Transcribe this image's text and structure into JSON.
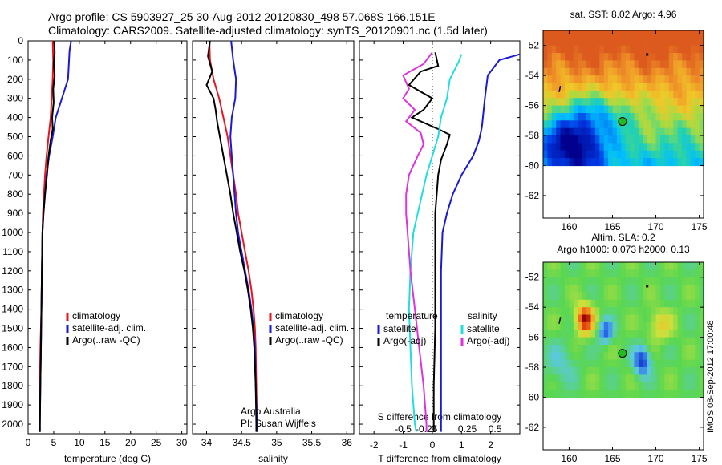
{
  "header": {
    "line1": "Argo profile: CS 5903927_25 30-Aug-2012 20120830_498 57.068S 166.151E",
    "line2": "Climatology: CARS2009. Satellite-adjusted climatology: synTS_20120901.nc (1.5d later)"
  },
  "stamp": "IMOS 08-Sep-2012 17:00:48",
  "colors": {
    "climatology": "#e8141e",
    "satellite": "#1a1ad6",
    "argo": "#000000",
    "sat_salinity": "#22dddd",
    "argo_salinity": "#dd33dd",
    "marker": "#22bb22"
  },
  "chart_data": [
    {
      "type": "line",
      "name": "temperature-profile",
      "xlabel": "temperature (deg C)",
      "ylabel": "",
      "xlim": [
        0,
        31
      ],
      "ylim": [
        2050,
        0
      ],
      "xticks": [
        0,
        5,
        10,
        15,
        20,
        25,
        30
      ],
      "yticks": [
        0,
        100,
        200,
        300,
        400,
        500,
        600,
        700,
        800,
        900,
        1000,
        1100,
        1200,
        1300,
        1400,
        1500,
        1600,
        1700,
        1800,
        1900,
        2000
      ],
      "legend": [
        "climatology",
        "satellite-adj. clim.",
        "Argo(..raw -QC)"
      ],
      "series": [
        {
          "name": "climatology",
          "color_key": "climatology",
          "points": [
            [
              4.8,
              0
            ],
            [
              4.9,
              100
            ],
            [
              4.8,
              200
            ],
            [
              4.6,
              300
            ],
            [
              4.4,
              400
            ],
            [
              4.0,
              500
            ],
            [
              3.6,
              600
            ],
            [
              3.3,
              700
            ],
            [
              3.1,
              800
            ],
            [
              2.9,
              900
            ],
            [
              2.8,
              1000
            ],
            [
              2.7,
              1200
            ],
            [
              2.6,
              1400
            ],
            [
              2.4,
              1600
            ],
            [
              2.3,
              1800
            ],
            [
              2.2,
              2000
            ],
            [
              2.2,
              2040
            ]
          ]
        },
        {
          "name": "satellite-adj. clim.",
          "color_key": "satellite",
          "points": [
            [
              8.4,
              0
            ],
            [
              8.1,
              50
            ],
            [
              7.8,
              200
            ],
            [
              6.6,
              300
            ],
            [
              5.4,
              400
            ],
            [
              4.8,
              500
            ],
            [
              4.1,
              600
            ],
            [
              3.6,
              700
            ],
            [
              3.3,
              800
            ],
            [
              3.0,
              900
            ],
            [
              2.8,
              1000
            ],
            [
              2.7,
              1200
            ],
            [
              2.6,
              1400
            ],
            [
              2.5,
              1600
            ],
            [
              2.4,
              1800
            ],
            [
              2.3,
              2000
            ],
            [
              2.3,
              2040
            ]
          ]
        },
        {
          "name": "Argo(..raw -QC)",
          "color_key": "argo",
          "points": [
            [
              5.1,
              0
            ],
            [
              5.2,
              60
            ],
            [
              5.0,
              120
            ],
            [
              5.2,
              180
            ],
            [
              4.9,
              250
            ],
            [
              5.0,
              320
            ],
            [
              4.7,
              400
            ],
            [
              4.8,
              460
            ],
            [
              4.4,
              520
            ],
            [
              4.0,
              600
            ],
            [
              3.7,
              700
            ],
            [
              3.3,
              800
            ],
            [
              3.0,
              900
            ],
            [
              2.8,
              1000
            ],
            [
              2.7,
              1200
            ],
            [
              2.6,
              1400
            ],
            [
              2.5,
              1600
            ],
            [
              2.4,
              1800
            ],
            [
              2.3,
              2000
            ],
            [
              2.3,
              2040
            ]
          ]
        }
      ]
    },
    {
      "type": "line",
      "name": "salinity-profile",
      "xlabel": "salinity",
      "ylabel": "",
      "xlim": [
        33.8,
        36.1
      ],
      "ylim": [
        2050,
        0
      ],
      "xticks": [
        34,
        34.5,
        35,
        35.5,
        36
      ],
      "xtick_labels": [
        "34",
        "34.5",
        "35",
        "35.5",
        "36"
      ],
      "legend": [
        "climatology",
        "satellite-adj. clim.",
        "Argo(..raw -QC)"
      ],
      "annotation": [
        "Argo Australia",
        "PI: Susan Wijffels"
      ],
      "series": [
        {
          "name": "climatology",
          "color_key": "climatology",
          "points": [
            [
              34.04,
              0
            ],
            [
              34.05,
              100
            ],
            [
              34.1,
              200
            ],
            [
              34.18,
              300
            ],
            [
              34.24,
              400
            ],
            [
              34.3,
              500
            ],
            [
              34.34,
              600
            ],
            [
              34.38,
              700
            ],
            [
              34.42,
              800
            ],
            [
              34.45,
              900
            ],
            [
              34.5,
              1000
            ],
            [
              34.55,
              1100
            ],
            [
              34.6,
              1200
            ],
            [
              34.64,
              1300
            ],
            [
              34.67,
              1400
            ],
            [
              34.69,
              1500
            ],
            [
              34.7,
              1600
            ],
            [
              34.71,
              1800
            ],
            [
              34.72,
              2000
            ],
            [
              34.72,
              2040
            ]
          ]
        },
        {
          "name": "satellite-adj. clim.",
          "color_key": "satellite",
          "points": [
            [
              34.35,
              0
            ],
            [
              34.38,
              100
            ],
            [
              34.42,
              200
            ],
            [
              34.41,
              300
            ],
            [
              34.36,
              400
            ],
            [
              34.34,
              500
            ],
            [
              34.36,
              600
            ],
            [
              34.38,
              700
            ],
            [
              34.4,
              800
            ],
            [
              34.42,
              900
            ],
            [
              34.45,
              1000
            ],
            [
              34.5,
              1100
            ],
            [
              34.55,
              1200
            ],
            [
              34.6,
              1300
            ],
            [
              34.64,
              1400
            ],
            [
              34.67,
              1500
            ],
            [
              34.69,
              1600
            ],
            [
              34.7,
              1800
            ],
            [
              34.72,
              2000
            ],
            [
              34.72,
              2040
            ]
          ]
        },
        {
          "name": "Argo(..raw -QC)",
          "color_key": "argo",
          "points": [
            [
              34.05,
              0
            ],
            [
              34.02,
              80
            ],
            [
              34.08,
              160
            ],
            [
              34.0,
              230
            ],
            [
              34.1,
              300
            ],
            [
              34.13,
              360
            ],
            [
              34.15,
              420
            ],
            [
              34.18,
              480
            ],
            [
              34.22,
              560
            ],
            [
              34.26,
              640
            ],
            [
              34.3,
              720
            ],
            [
              34.34,
              800
            ],
            [
              34.38,
              900
            ],
            [
              34.43,
              1000
            ],
            [
              34.48,
              1100
            ],
            [
              34.54,
              1200
            ],
            [
              34.59,
              1300
            ],
            [
              34.63,
              1400
            ],
            [
              34.66,
              1500
            ],
            [
              34.68,
              1600
            ],
            [
              34.7,
              1800
            ],
            [
              34.71,
              2000
            ],
            [
              34.71,
              2040
            ]
          ]
        }
      ]
    },
    {
      "type": "line",
      "name": "difference-profile",
      "xlabel": "T difference from climatology",
      "xlabel_top": "S difference from climatology",
      "xlim": [
        -2.5,
        3
      ],
      "ylim": [
        2050,
        0
      ],
      "xticks": [
        -2,
        -1,
        0,
        1,
        2
      ],
      "top_ticks": [
        -0.5,
        -0.25,
        0,
        0.25,
        0.5
      ],
      "top_tick_labels": [
        "-0.5",
        "-0.25",
        "0",
        "0.25",
        "0.5"
      ],
      "legend_left": {
        "title": "temperature",
        "items": [
          "satellite",
          "Argo(-adj)"
        ]
      },
      "legend_right": {
        "title": "salinity",
        "items": [
          "satellite",
          "Argo(-adj)"
        ]
      },
      "series": [
        {
          "name": "temperature satellite",
          "color_key": "satellite",
          "points": [
            [
              3.0,
              70
            ],
            [
              2.3,
              100
            ],
            [
              1.9,
              180
            ],
            [
              1.8,
              300
            ],
            [
              1.7,
              450
            ],
            [
              1.6,
              520
            ],
            [
              1.4,
              600
            ],
            [
              1.0,
              700
            ],
            [
              0.7,
              800
            ],
            [
              0.5,
              900
            ],
            [
              0.35,
              1000
            ],
            [
              0.3,
              1200
            ],
            [
              0.3,
              1500
            ],
            [
              0.3,
              1800
            ],
            [
              0.3,
              2000
            ],
            [
              0.3,
              2040
            ]
          ]
        },
        {
          "name": "temperature Argo(-adj)",
          "color_key": "argo",
          "points": [
            [
              0.1,
              60
            ],
            [
              0.2,
              130
            ],
            [
              -0.4,
              160
            ],
            [
              -0.8,
              230
            ],
            [
              0.0,
              300
            ],
            [
              -0.3,
              360
            ],
            [
              -0.7,
              400
            ],
            [
              0.2,
              460
            ],
            [
              0.6,
              490
            ],
            [
              0.5,
              540
            ],
            [
              0.3,
              620
            ],
            [
              0.2,
              700
            ],
            [
              0.15,
              800
            ],
            [
              0.1,
              900
            ],
            [
              0.1,
              1000
            ],
            [
              0.1,
              1200
            ],
            [
              0.1,
              1500
            ],
            [
              0.05,
              1800
            ],
            [
              0.05,
              2000
            ],
            [
              0.05,
              2040
            ]
          ]
        },
        {
          "name": "salinity satellite",
          "color_key": "sat_salinity",
          "points": [
            [
              1.0,
              70
            ],
            [
              0.9,
              110
            ],
            [
              0.6,
              200
            ],
            [
              0.5,
              300
            ],
            [
              0.3,
              400
            ],
            [
              0.2,
              500
            ],
            [
              0.0,
              600
            ],
            [
              -0.2,
              700
            ],
            [
              -0.35,
              800
            ],
            [
              -0.5,
              900
            ],
            [
              -0.65,
              1000
            ],
            [
              -0.75,
              1200
            ],
            [
              -0.8,
              1400
            ],
            [
              -0.75,
              1600
            ],
            [
              -0.7,
              1800
            ],
            [
              -0.6,
              2000
            ],
            [
              -0.55,
              2040
            ]
          ]
        },
        {
          "name": "salinity Argo(-adj)",
          "color_key": "argo_salinity",
          "points": [
            [
              0.0,
              60
            ],
            [
              -0.3,
              120
            ],
            [
              -1.0,
              180
            ],
            [
              -0.8,
              250
            ],
            [
              -1.0,
              300
            ],
            [
              -0.6,
              360
            ],
            [
              -0.9,
              420
            ],
            [
              -0.4,
              480
            ],
            [
              -0.3,
              540
            ],
            [
              -0.5,
              600
            ],
            [
              -0.8,
              700
            ],
            [
              -0.9,
              800
            ],
            [
              -0.9,
              900
            ],
            [
              -0.85,
              1000
            ],
            [
              -0.75,
              1200
            ],
            [
              -0.6,
              1400
            ],
            [
              -0.45,
              1600
            ],
            [
              -0.3,
              1800
            ],
            [
              -0.2,
              2000
            ],
            [
              -0.2,
              2040
            ]
          ]
        }
      ]
    },
    {
      "type": "heatmap",
      "name": "sst-map",
      "title": "sat. SST: 8.02 Argo: 4.96",
      "xlim": [
        157,
        175.5
      ],
      "ylim": [
        -63.5,
        -51
      ],
      "xticks": [
        160,
        165,
        170,
        175
      ],
      "yticks": [
        -52,
        -54,
        -56,
        -58,
        -60,
        -62
      ],
      "data_extent_lat": [
        -60,
        -51
      ],
      "argo_location": [
        166.151,
        -57.068
      ]
    },
    {
      "type": "heatmap",
      "name": "sla-map",
      "title": "Altim. SLA: 0.2",
      "subtitle": "Argo h1000: 0.073 h2000: 0.13",
      "xlim": [
        157,
        175.5
      ],
      "ylim": [
        -63.5,
        -51
      ],
      "xticks": [
        160,
        165,
        170,
        175
      ],
      "yticks": [
        -52,
        -54,
        -56,
        -58,
        -60,
        -62
      ],
      "data_extent_lat": [
        -60,
        -51
      ],
      "argo_location": [
        166.151,
        -57.068
      ]
    }
  ]
}
